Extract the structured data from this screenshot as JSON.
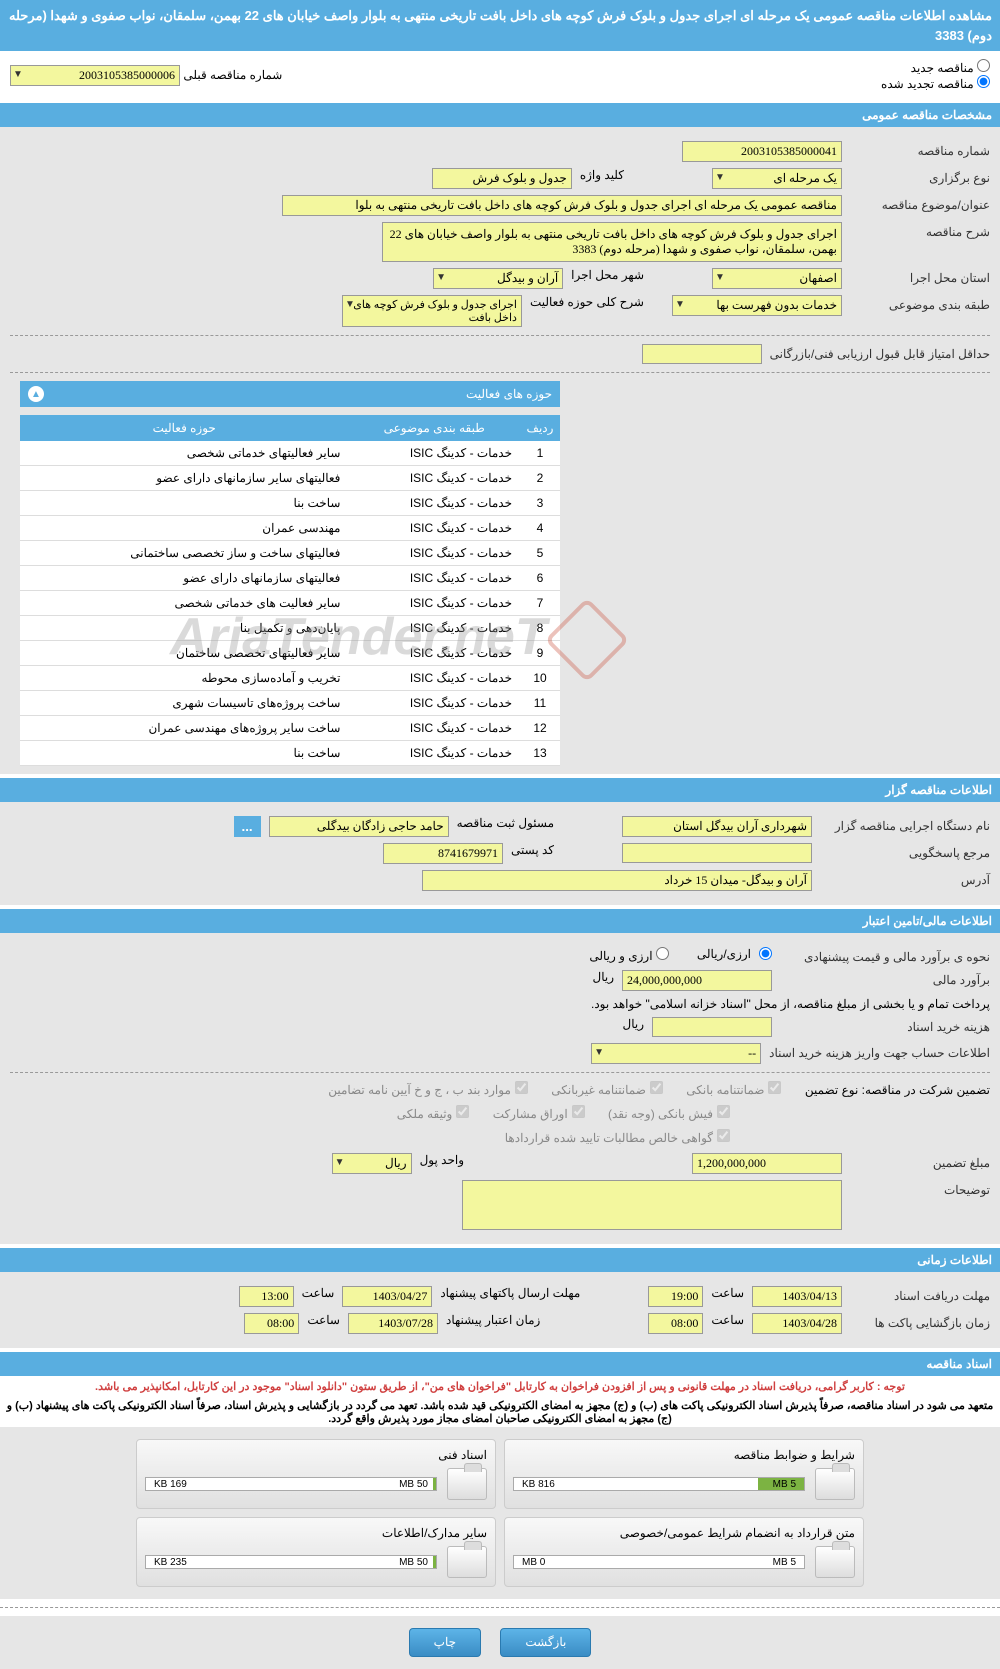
{
  "header": {
    "title": "مشاهده اطلاعات مناقصه عمومی یک مرحله ای اجرای جدول و بلوک فرش کوچه های داخل بافت تاریخی منتهی به بلوار واصف خیابان های 22 بهمن، سلمقان، نواب صفوی و شهدا (مرحله دوم) 3383"
  },
  "radios": {
    "new_label": "مناقصه جدید",
    "renewed_label": "مناقصه تجدید شده",
    "prev_num_label": "شماره مناقصه قبلی",
    "prev_num_value": "2003105385000006"
  },
  "section1": {
    "title": "مشخصات مناقصه عمومی",
    "tender_num_label": "شماره مناقصه",
    "tender_num": "2003105385000041",
    "hold_type_label": "نوع برگزاری",
    "hold_type": "یک مرحله ای",
    "keyword_label": "کلید واژه",
    "keyword": "جدول و بلوک فرش",
    "subject_label": "عنوان/موضوع مناقصه",
    "subject": "مناقصه عمومی یک مرحله ای اجرای جدول و بلوک فرش کوچه های داخل بافت تاریخی منتهی به بلوا",
    "desc_label": "شرح مناقصه",
    "desc": "اجرای جدول و بلوک فرش کوچه های داخل بافت تاریخی منتهی به بلوار واصف خیابان های 22 بهمن، سلمقان، نواب صفوی و شهدا (مرحله دوم) 3383",
    "province_label": "استان محل اجرا",
    "province": "اصفهان",
    "city_label": "شهر محل اجرا",
    "city": "آران و بیدگل",
    "category_label": "طبقه بندی موضوعی",
    "category": "خدمات بدون فهرست بها",
    "activity_desc_label": "شرح کلی حوزه فعالیت",
    "activity_desc": "اجرای جدول و بلوک فرش کوچه های داخل بافت",
    "min_score_label": "حداقل امتیاز قابل قبول ارزیابی فنی/بازرگانی",
    "min_score": ""
  },
  "activity_table": {
    "caption": "حوزه های فعالیت",
    "headers": [
      "ردیف",
      "طبقه بندی موضوعی",
      "حوزه فعالیت"
    ],
    "rows": [
      [
        "1",
        "خدمات - کدینگ ISIC",
        "سایر فعالیتهای خدماتی شخصی"
      ],
      [
        "2",
        "خدمات - کدینگ ISIC",
        "فعالیتهای سایر سازمانهای دارای عضو"
      ],
      [
        "3",
        "خدمات - کدینگ ISIC",
        "ساخت بنا"
      ],
      [
        "4",
        "خدمات - کدینگ ISIC",
        "مهندسی عمران"
      ],
      [
        "5",
        "خدمات - کدینگ ISIC",
        "فعالیتهای ساخت و ساز تخصصی ساختمانی"
      ],
      [
        "6",
        "خدمات - کدینگ ISIC",
        "فعالیتهای سازمانهای دارای عضو"
      ],
      [
        "7",
        "خدمات - کدینگ ISIC",
        "سایر فعالیت های خدماتی شخصی"
      ],
      [
        "8",
        "خدمات - کدینگ ISIC",
        "پایان‌دهی و تکمیل بنا"
      ],
      [
        "9",
        "خدمات - کدینگ ISIC",
        "سایر فعالیتهای تخصصی ساختمان"
      ],
      [
        "10",
        "خدمات - کدینگ ISIC",
        "تخریب و آماده‌سازی محوطه"
      ],
      [
        "11",
        "خدمات - کدینگ ISIC",
        "ساخت پروژه‌های تاسیسات شهری"
      ],
      [
        "12",
        "خدمات - کدینگ ISIC",
        "ساخت سایر پروژه‌های مهندسی عمران"
      ],
      [
        "13",
        "خدمات - کدینگ ISIC",
        "ساخت بنا"
      ]
    ]
  },
  "section2": {
    "title": "اطلاعات مناقصه گزار",
    "org_label": "نام دستگاه اجرایی مناقصه گزار",
    "org": "شهرداری آران بیدگل استان",
    "registrar_label": "مسئول ثبت مناقصه",
    "registrar": "حامد حاجی زادگان بیدگلی",
    "contact_label": "مرجع پاسخگویی",
    "contact": "",
    "postal_label": "کد پستی",
    "postal": "8741679971",
    "address_label": "آدرس",
    "address": "آران و بیدگل- میدان 15 خرداد"
  },
  "section3": {
    "title": "اطلاعات مالی/تامین اعتبار",
    "method_label": "نحوه ی برآورد مالی و قیمت پیشنهادی",
    "method_opt1": "ارزی/ریالی",
    "method_opt2": "ارزی و ریالی",
    "estimate_label": "برآورد مالی",
    "estimate": "24,000,000,000",
    "currency": "ریال",
    "pay_note": "پرداخت تمام و یا بخشی از مبلغ مناقصه، از محل \"اسناد خزانه اسلامی\" خواهد بود.",
    "doc_cost_label": "هزینه خرید اسناد",
    "doc_cost": "",
    "account_label": "اطلاعات حساب جهت واریز هزینه خرید اسناد",
    "account": "--",
    "guarantee_label": "تضمین شرکت در مناقصه:   نوع تضمین",
    "chk1": "ضمانتنامه بانکی",
    "chk2": "ضمانتنامه غیربانکی",
    "chk3": "موارد بند ب ، ج و خ آیین نامه تضامین",
    "chk4": "فیش بانکی (وجه نقد)",
    "chk5": "اوراق مشارکت",
    "chk6": "وثیقه ملکی",
    "chk7": "گواهی خالص مطالبات تایید شده قراردادها",
    "guarantee_amount_label": "مبلغ تضمین",
    "guarantee_amount": "1,200,000,000",
    "unit_label": "واحد پول",
    "unit": "ریال",
    "notes_label": "توضیحات"
  },
  "section4": {
    "title": "اطلاعات زمانی",
    "doc_deadline_label": "مهلت دریافت اسناد",
    "doc_deadline_date": "1403/04/13",
    "doc_deadline_time": "19:00",
    "send_deadline_label": "مهلت ارسال پاکتهای پیشنهاد",
    "send_deadline_date": "1403/04/27",
    "send_deadline_time": "13:00",
    "open_label": "زمان بازگشایی پاکت ها",
    "open_date": "1403/04/28",
    "open_time": "08:00",
    "validity_label": "زمان اعتبار پیشنهاد",
    "validity_date": "1403/07/28",
    "validity_time": "08:00",
    "time_label": "ساعت"
  },
  "section5": {
    "title": "اسناد مناقصه",
    "warn1": "توجه : کاربر گرامی، دریافت اسناد در مهلت قانونی و پس از افزودن فراخوان به کارتابل \"فراخوان های من\"، از طریق ستون \"دانلود اسناد\" موجود در این کارتابل، امکانپذیر می باشد.",
    "warn2": "متعهد می شود در اسناد مناقصه، صرفاً پذیرش اسناد الکترونیکی پاکت های (ب) و (ج) مجهز به امضای الکترونیکی قید شده باشد. تعهد می گردد در بازگشایی و پذیرش اسناد، صرفاً اسناد الکترونیکی پاکت های پیشنهاد (ب) و (ج) مجهز به امضای الکترونیکی صاحبان امضای مجاز مورد پذیرش واقع گردد.",
    "files": [
      {
        "name": "شرایط و ضوابط مناقصه",
        "used": "816 KB",
        "total": "5 MB",
        "fill": 16
      },
      {
        "name": "اسناد فنی",
        "used": "169 KB",
        "total": "50 MB",
        "fill": 1
      },
      {
        "name": "متن قرارداد به انضمام شرایط عمومی/خصوصی",
        "used": "0 MB",
        "total": "5 MB",
        "fill": 0
      },
      {
        "name": "سایر مدارک/اطلاعات",
        "used": "235 KB",
        "total": "50 MB",
        "fill": 1
      }
    ]
  },
  "buttons": {
    "back": "بازگشت",
    "print": "چاپ"
  },
  "watermark": "AriaTender.neT",
  "colors": {
    "header_bg": "#59aee0",
    "input_bg": "#f3f79e",
    "content_bg": "#e6e6e6"
  }
}
